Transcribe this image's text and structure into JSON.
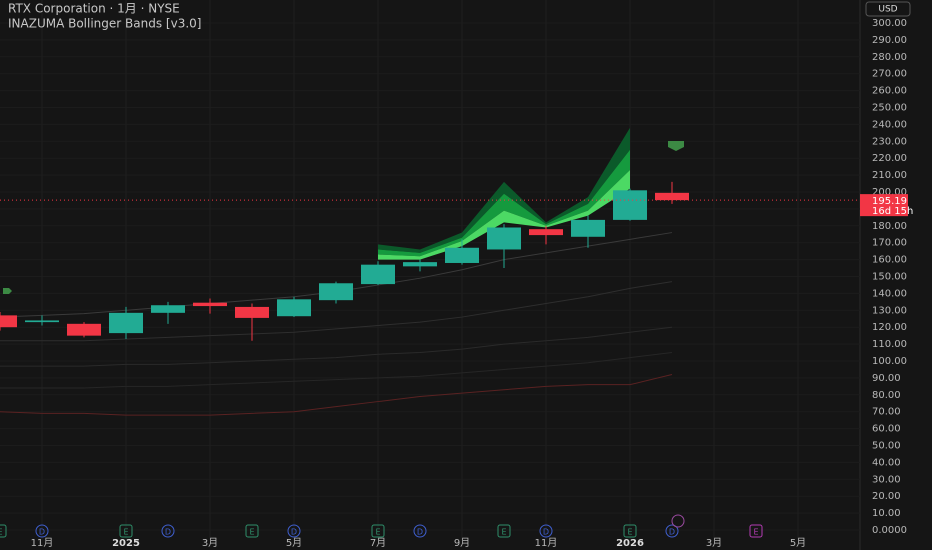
{
  "chart_data": {
    "type": "candlestick",
    "title": "RTX Corporation · 1月 · NYSE",
    "subtitle": "INAZUMA Bollinger Bands [v3.0]",
    "currency": "USD",
    "last_price": 195.19,
    "last_price_label": "195.19",
    "countdown": "16d 15h",
    "categories": [
      null,
      "11月",
      null,
      "2025",
      null,
      "3月",
      null,
      "5月",
      null,
      "7月",
      null,
      "9月",
      null,
      "11月",
      null,
      "2026",
      null,
      "3月",
      null,
      "5月"
    ],
    "open": [
      127,
      123,
      122,
      116.5,
      128.5,
      134.5,
      132,
      126.5,
      136,
      145.5,
      156,
      158,
      166,
      178,
      173.5,
      183.5,
      199.5,
      null,
      null,
      null
    ],
    "high": [
      129,
      127,
      123,
      132,
      135,
      137,
      134,
      138,
      147,
      159,
      160,
      172,
      181,
      180,
      186,
      202,
      206,
      null,
      null,
      null
    ],
    "low": [
      118,
      121,
      114,
      113,
      122,
      128,
      112,
      126,
      134,
      145,
      153,
      157,
      155,
      169,
      167,
      183,
      193,
      null,
      null,
      null
    ],
    "close": [
      120,
      124,
      115,
      128.5,
      133,
      132.5,
      125.5,
      136.5,
      146,
      157,
      158.5,
      167,
      179,
      174.5,
      183.5,
      201,
      195.19,
      null,
      null,
      null
    ],
    "up_color": "#22ab94",
    "down_color": "#f23645",
    "lines": [
      {
        "color": "#3a3a3a",
        "values": [
          126,
          127,
          128,
          130,
          132,
          134,
          136,
          138,
          141,
          145,
          149,
          154,
          160,
          164,
          168,
          172,
          176,
          null,
          null,
          null
        ]
      },
      {
        "color": "#2e2e2e",
        "values": [
          112,
          112,
          112,
          113,
          114,
          115,
          116,
          117,
          119,
          121,
          123,
          126,
          130,
          134,
          138,
          143,
          147,
          null,
          null,
          null
        ]
      },
      {
        "color": "#2a2a2a",
        "values": [
          97,
          97,
          97,
          98,
          98,
          99,
          100,
          101,
          102,
          104,
          105,
          107,
          110,
          112,
          114,
          117,
          120,
          null,
          null,
          null
        ]
      },
      {
        "color": "#262626",
        "values": [
          84,
          84,
          84,
          85,
          85,
          86,
          87,
          88,
          89,
          90,
          91,
          93,
          95,
          97,
          99,
          102,
          105,
          null,
          null,
          null
        ]
      },
      {
        "color": "#5a2222",
        "values": [
          70,
          69,
          69,
          68,
          68,
          68,
          69,
          70,
          73,
          76,
          79,
          81,
          83,
          85,
          86,
          86,
          92,
          null,
          null,
          null
        ]
      }
    ],
    "bands": [
      {
        "color": "#0b5a2a",
        "values": [
          null,
          null,
          null,
          null,
          null,
          null,
          null,
          null,
          null,
          169,
          166,
          176,
          206,
          182,
          197,
          238,
          null,
          null,
          null,
          null
        ]
      },
      {
        "color": "#159a3e",
        "values": [
          null,
          null,
          null,
          null,
          null,
          null,
          null,
          null,
          null,
          166,
          164,
          173,
          199,
          181,
          193,
          225,
          null,
          null,
          null,
          null
        ]
      },
      {
        "color": "#4cd964",
        "values": [
          null,
          null,
          null,
          null,
          null,
          null,
          null,
          null,
          null,
          163,
          162,
          171,
          189,
          180,
          189,
          213,
          null,
          null,
          null,
          null
        ]
      },
      {
        "color": "#4cd964",
        "values": [
          null,
          null,
          null,
          null,
          null,
          null,
          null,
          null,
          null,
          160,
          160,
          168,
          182,
          179,
          186,
          202,
          null,
          null,
          null,
          null
        ]
      }
    ],
    "events": [
      {
        "at": 0,
        "label": "E"
      },
      {
        "at": 1,
        "label": "D"
      },
      {
        "at": 3,
        "label": "E"
      },
      {
        "at": 4,
        "label": "D"
      },
      {
        "at": 6,
        "label": "E"
      },
      {
        "at": 7,
        "label": "D"
      },
      {
        "at": 9,
        "label": "E"
      },
      {
        "at": 10,
        "label": "D"
      },
      {
        "at": 12,
        "label": "E"
      },
      {
        "at": 13,
        "label": "D"
      },
      {
        "at": 15,
        "label": "E"
      },
      {
        "at": 16,
        "label": "D"
      },
      {
        "at": 18,
        "label": "E"
      }
    ],
    "ylim": [
      0,
      300
    ],
    "yticks": [
      {
        "value": 0,
        "label": "0.0000"
      },
      {
        "value": 10,
        "label": "10.00"
      },
      {
        "value": 20,
        "label": "20.00"
      },
      {
        "value": 30,
        "label": "30.00"
      },
      {
        "value": 40,
        "label": "40.00"
      },
      {
        "value": 50,
        "label": "50.00"
      },
      {
        "value": 60,
        "label": "60.00"
      },
      {
        "value": 70,
        "label": "70.00"
      },
      {
        "value": 80,
        "label": "80.00"
      },
      {
        "value": 90,
        "label": "90.00"
      },
      {
        "value": 100,
        "label": "100.00"
      },
      {
        "value": 110,
        "label": "110.00"
      },
      {
        "value": 120,
        "label": "120.00"
      },
      {
        "value": 130,
        "label": "130.00"
      },
      {
        "value": 140,
        "label": "140.00"
      },
      {
        "value": 150,
        "label": "150.00"
      },
      {
        "value": 160,
        "label": "160.00"
      },
      {
        "value": 170,
        "label": "170.00"
      },
      {
        "value": 180,
        "label": "180.00"
      },
      {
        "value": 190,
        "label": "190.00"
      },
      {
        "value": 200,
        "label": "200.00"
      },
      {
        "value": 210,
        "label": "210.00"
      },
      {
        "value": 220,
        "label": "220.00"
      },
      {
        "value": 230,
        "label": "230.00"
      },
      {
        "value": 240,
        "label": "240.00"
      },
      {
        "value": 250,
        "label": "250.00"
      },
      {
        "value": 260,
        "label": "260.00"
      },
      {
        "value": 270,
        "label": "270.00"
      },
      {
        "value": 280,
        "label": "280.00"
      },
      {
        "value": 290,
        "label": "290.00"
      },
      {
        "value": 300,
        "label": "300.00"
      }
    ],
    "grid": true
  }
}
